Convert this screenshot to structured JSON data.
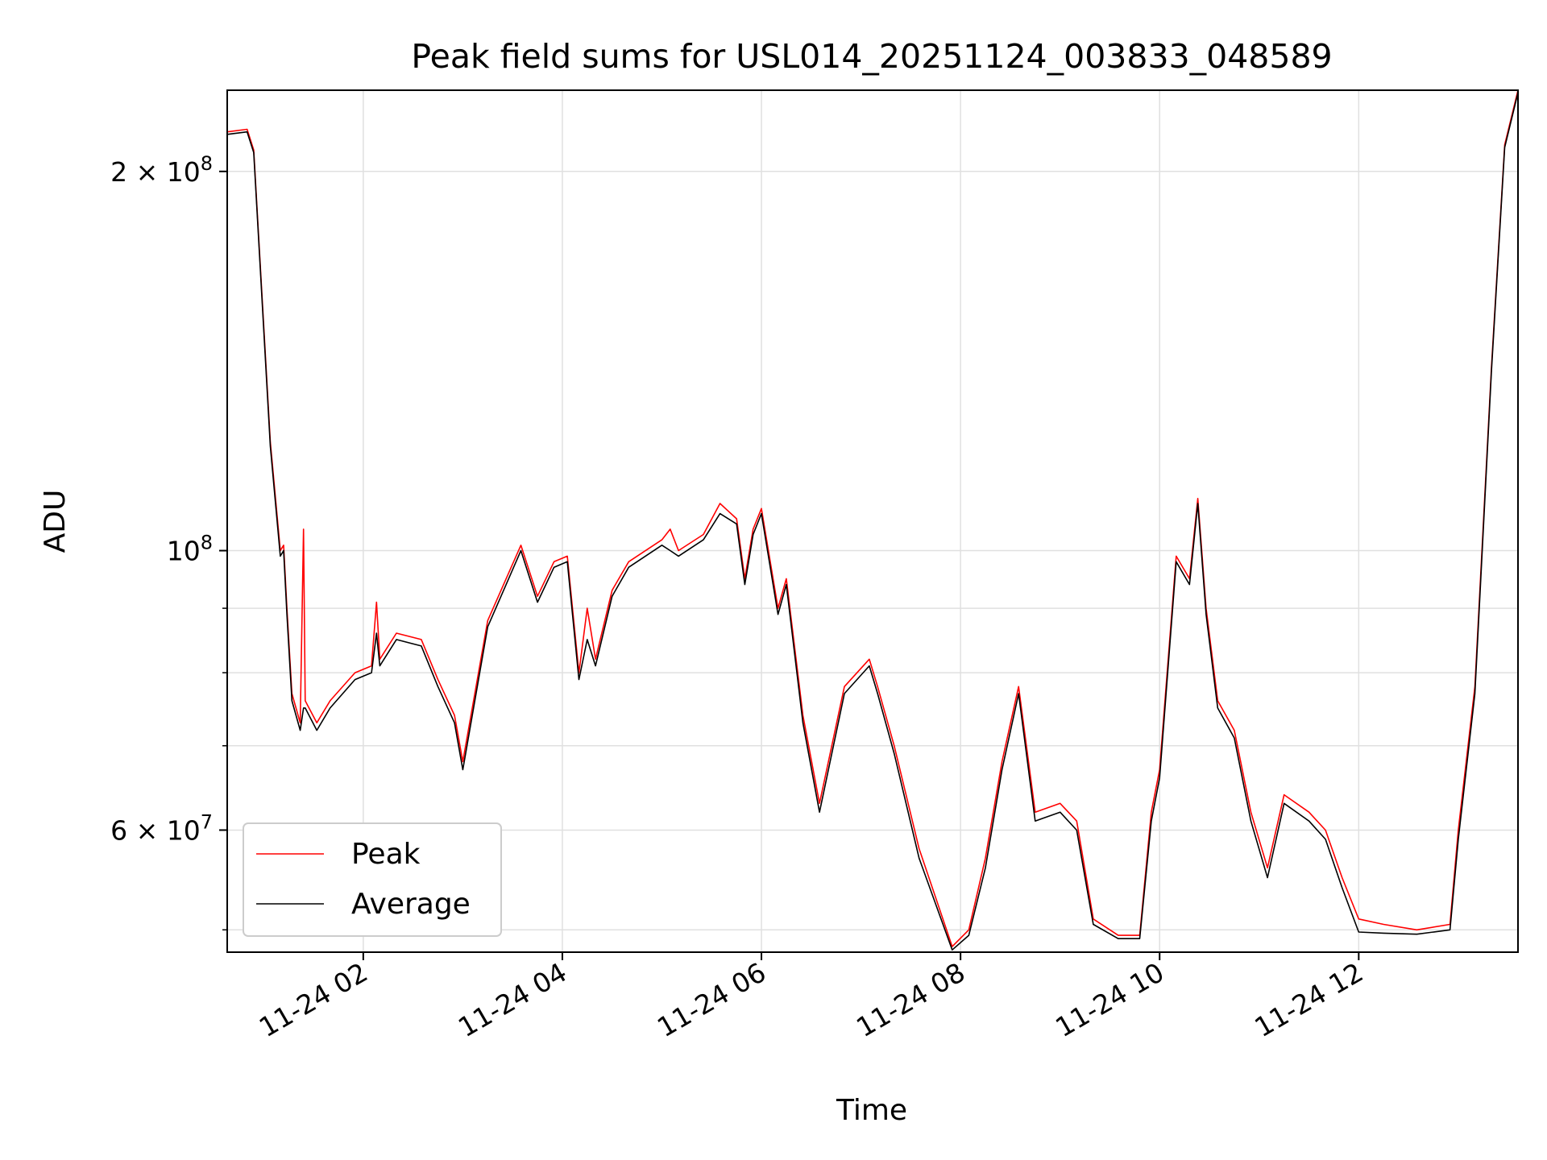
{
  "chart_data": {
    "type": "line",
    "title": "Peak field sums for USL014_20251124_003833_048589",
    "xlabel": "Time",
    "ylabel": "ADU",
    "yscale": "log",
    "ylim": [
      48000000,
      232000000
    ],
    "xlim": [
      "2025-11-24 00:38",
      "2025-11-24 13:36"
    ],
    "grid": true,
    "legend_position": "lower-left",
    "x_ticks": [
      {
        "value": "2025-11-24 02:00",
        "label": "11-24 02"
      },
      {
        "value": "2025-11-24 04:00",
        "label": "11-24 04"
      },
      {
        "value": "2025-11-24 06:00",
        "label": "11-24 06"
      },
      {
        "value": "2025-11-24 08:00",
        "label": "11-24 08"
      },
      {
        "value": "2025-11-24 10:00",
        "label": "11-24 10"
      },
      {
        "value": "2025-11-24 12:00",
        "label": "11-24 12"
      }
    ],
    "y_ticks": [
      {
        "value": 200000000,
        "base": "2 × 10",
        "exp": "8"
      },
      {
        "value": 100000000,
        "base": "10",
        "exp": "8"
      },
      {
        "value": 60000000,
        "base": "6 × 10",
        "exp": "7"
      }
    ],
    "y_minor_ticks": [
      50000000,
      70000000,
      80000000,
      90000000
    ],
    "colors": {
      "peak": "#ff0000",
      "average": "#000000",
      "grid": "#e0e0e0"
    },
    "series": [
      {
        "name": "Peak",
        "color": "#ff0000",
        "points": [
          [
            "2025-11-24 00:38",
            215000000
          ],
          [
            "2025-11-24 00:50",
            216000000
          ],
          [
            "2025-11-24 00:54",
            208000000
          ],
          [
            "2025-11-24 01:04",
            122000000
          ],
          [
            "2025-11-24 01:10",
            100000000
          ],
          [
            "2025-11-24 01:12",
            101000000
          ],
          [
            "2025-11-24 01:14",
            90000000
          ],
          [
            "2025-11-24 01:17",
            77000000
          ],
          [
            "2025-11-24 01:22",
            73000000
          ],
          [
            "2025-11-24 01:24",
            104000000
          ],
          [
            "2025-11-24 01:25",
            76000000
          ],
          [
            "2025-11-24 01:32",
            73000000
          ],
          [
            "2025-11-24 01:40",
            76000000
          ],
          [
            "2025-11-24 01:55",
            80000000
          ],
          [
            "2025-11-24 02:05",
            81000000
          ],
          [
            "2025-11-24 02:08",
            91000000
          ],
          [
            "2025-11-24 02:10",
            82000000
          ],
          [
            "2025-11-24 02:20",
            86000000
          ],
          [
            "2025-11-24 02:35",
            85000000
          ],
          [
            "2025-11-24 02:45",
            79000000
          ],
          [
            "2025-11-24 02:55",
            74000000
          ],
          [
            "2025-11-24 03:00",
            68000000
          ],
          [
            "2025-11-24 03:15",
            88000000
          ],
          [
            "2025-11-24 03:35",
            101000000
          ],
          [
            "2025-11-24 03:45",
            92000000
          ],
          [
            "2025-11-24 03:55",
            98000000
          ],
          [
            "2025-11-24 04:03",
            99000000
          ],
          [
            "2025-11-24 04:10",
            80000000
          ],
          [
            "2025-11-24 04:15",
            90000000
          ],
          [
            "2025-11-24 04:20",
            82000000
          ],
          [
            "2025-11-24 04:30",
            93000000
          ],
          [
            "2025-11-24 04:40",
            98000000
          ],
          [
            "2025-11-24 05:00",
            102000000
          ],
          [
            "2025-11-24 05:05",
            104000000
          ],
          [
            "2025-11-24 05:10",
            100000000
          ],
          [
            "2025-11-24 05:25",
            103000000
          ],
          [
            "2025-11-24 05:35",
            109000000
          ],
          [
            "2025-11-24 05:45",
            106000000
          ],
          [
            "2025-11-24 05:50",
            95000000
          ],
          [
            "2025-11-24 05:55",
            104000000
          ],
          [
            "2025-11-24 06:00",
            108000000
          ],
          [
            "2025-11-24 06:10",
            90000000
          ],
          [
            "2025-11-24 06:15",
            95000000
          ],
          [
            "2025-11-24 06:25",
            74000000
          ],
          [
            "2025-11-24 06:35",
            63000000
          ],
          [
            "2025-11-24 06:50",
            78000000
          ],
          [
            "2025-11-24 07:05",
            82000000
          ],
          [
            "2025-11-24 07:10",
            78000000
          ],
          [
            "2025-11-24 07:20",
            70000000
          ],
          [
            "2025-11-24 07:35",
            58000000
          ],
          [
            "2025-11-24 07:55",
            48500000
          ],
          [
            "2025-11-24 08:05",
            50000000
          ],
          [
            "2025-11-24 08:15",
            57000000
          ],
          [
            "2025-11-24 08:25",
            68000000
          ],
          [
            "2025-11-24 08:35",
            78000000
          ],
          [
            "2025-11-24 08:45",
            62000000
          ],
          [
            "2025-11-24 09:00",
            63000000
          ],
          [
            "2025-11-24 09:10",
            61000000
          ],
          [
            "2025-11-24 09:20",
            51000000
          ],
          [
            "2025-11-24 09:35",
            49500000
          ],
          [
            "2025-11-24 09:48",
            49500000
          ],
          [
            "2025-11-24 09:55",
            62000000
          ],
          [
            "2025-11-24 10:00",
            67000000
          ],
          [
            "2025-11-24 10:10",
            99000000
          ],
          [
            "2025-11-24 10:18",
            95000000
          ],
          [
            "2025-11-24 10:23",
            110000000
          ],
          [
            "2025-11-24 10:28",
            90000000
          ],
          [
            "2025-11-24 10:35",
            76000000
          ],
          [
            "2025-11-24 10:45",
            72000000
          ],
          [
            "2025-11-24 10:55",
            62000000
          ],
          [
            "2025-11-24 11:05",
            56000000
          ],
          [
            "2025-11-24 11:15",
            64000000
          ],
          [
            "2025-11-24 11:30",
            62000000
          ],
          [
            "2025-11-24 11:40",
            60000000
          ],
          [
            "2025-11-24 11:50",
            55000000
          ],
          [
            "2025-11-24 12:00",
            51000000
          ],
          [
            "2025-11-24 12:15",
            50500000
          ],
          [
            "2025-11-24 12:35",
            50000000
          ],
          [
            "2025-11-24 12:55",
            50500000
          ],
          [
            "2025-11-24 13:00",
            60000000
          ],
          [
            "2025-11-24 13:10",
            78000000
          ],
          [
            "2025-11-24 13:20",
            140000000
          ],
          [
            "2025-11-24 13:28",
            210000000
          ],
          [
            "2025-11-24 13:36",
            232000000
          ]
        ]
      },
      {
        "name": "Average",
        "color": "#000000",
        "points": [
          [
            "2025-11-24 00:38",
            214000000
          ],
          [
            "2025-11-24 00:50",
            215000000
          ],
          [
            "2025-11-24 00:54",
            207000000
          ],
          [
            "2025-11-24 01:04",
            121000000
          ],
          [
            "2025-11-24 01:10",
            99000000
          ],
          [
            "2025-11-24 01:12",
            100000000
          ],
          [
            "2025-11-24 01:14",
            89000000
          ],
          [
            "2025-11-24 01:17",
            76000000
          ],
          [
            "2025-11-24 01:22",
            72000000
          ],
          [
            "2025-11-24 01:24",
            75000000
          ],
          [
            "2025-11-24 01:25",
            75000000
          ],
          [
            "2025-11-24 01:32",
            72000000
          ],
          [
            "2025-11-24 01:40",
            75000000
          ],
          [
            "2025-11-24 01:55",
            79000000
          ],
          [
            "2025-11-24 02:05",
            80000000
          ],
          [
            "2025-11-24 02:08",
            86000000
          ],
          [
            "2025-11-24 02:10",
            81000000
          ],
          [
            "2025-11-24 02:20",
            85000000
          ],
          [
            "2025-11-24 02:35",
            84000000
          ],
          [
            "2025-11-24 02:45",
            78000000
          ],
          [
            "2025-11-24 02:55",
            73000000
          ],
          [
            "2025-11-24 03:00",
            67000000
          ],
          [
            "2025-11-24 03:15",
            87000000
          ],
          [
            "2025-11-24 03:35",
            100000000
          ],
          [
            "2025-11-24 03:45",
            91000000
          ],
          [
            "2025-11-24 03:55",
            97000000
          ],
          [
            "2025-11-24 04:03",
            98000000
          ],
          [
            "2025-11-24 04:10",
            79000000
          ],
          [
            "2025-11-24 04:15",
            85000000
          ],
          [
            "2025-11-24 04:20",
            81000000
          ],
          [
            "2025-11-24 04:30",
            92000000
          ],
          [
            "2025-11-24 04:40",
            97000000
          ],
          [
            "2025-11-24 05:00",
            101000000
          ],
          [
            "2025-11-24 05:05",
            100000000
          ],
          [
            "2025-11-24 05:10",
            99000000
          ],
          [
            "2025-11-24 05:25",
            102000000
          ],
          [
            "2025-11-24 05:35",
            107000000
          ],
          [
            "2025-11-24 05:45",
            105000000
          ],
          [
            "2025-11-24 05:50",
            94000000
          ],
          [
            "2025-11-24 05:55",
            103000000
          ],
          [
            "2025-11-24 06:00",
            107000000
          ],
          [
            "2025-11-24 06:10",
            89000000
          ],
          [
            "2025-11-24 06:15",
            94000000
          ],
          [
            "2025-11-24 06:25",
            73000000
          ],
          [
            "2025-11-24 06:35",
            62000000
          ],
          [
            "2025-11-24 06:50",
            77000000
          ],
          [
            "2025-11-24 07:05",
            81000000
          ],
          [
            "2025-11-24 07:10",
            77000000
          ],
          [
            "2025-11-24 07:20",
            69000000
          ],
          [
            "2025-11-24 07:35",
            57000000
          ],
          [
            "2025-11-24 07:55",
            48200000
          ],
          [
            "2025-11-24 08:05",
            49500000
          ],
          [
            "2025-11-24 08:15",
            56000000
          ],
          [
            "2025-11-24 08:25",
            67000000
          ],
          [
            "2025-11-24 08:35",
            77000000
          ],
          [
            "2025-11-24 08:45",
            61000000
          ],
          [
            "2025-11-24 09:00",
            62000000
          ],
          [
            "2025-11-24 09:10",
            60000000
          ],
          [
            "2025-11-24 09:20",
            50500000
          ],
          [
            "2025-11-24 09:35",
            49200000
          ],
          [
            "2025-11-24 09:48",
            49200000
          ],
          [
            "2025-11-24 09:55",
            61000000
          ],
          [
            "2025-11-24 10:00",
            66000000
          ],
          [
            "2025-11-24 10:10",
            98000000
          ],
          [
            "2025-11-24 10:18",
            94000000
          ],
          [
            "2025-11-24 10:23",
            109000000
          ],
          [
            "2025-11-24 10:28",
            89000000
          ],
          [
            "2025-11-24 10:35",
            75000000
          ],
          [
            "2025-11-24 10:45",
            71000000
          ],
          [
            "2025-11-24 10:55",
            61000000
          ],
          [
            "2025-11-24 11:05",
            55000000
          ],
          [
            "2025-11-24 11:15",
            63000000
          ],
          [
            "2025-11-24 11:30",
            61000000
          ],
          [
            "2025-11-24 11:40",
            59000000
          ],
          [
            "2025-11-24 11:50",
            54000000
          ],
          [
            "2025-11-24 12:00",
            49800000
          ],
          [
            "2025-11-24 12:15",
            49700000
          ],
          [
            "2025-11-24 12:35",
            49600000
          ],
          [
            "2025-11-24 12:55",
            50000000
          ],
          [
            "2025-11-24 13:00",
            59000000
          ],
          [
            "2025-11-24 13:10",
            77000000
          ],
          [
            "2025-11-24 13:20",
            139000000
          ],
          [
            "2025-11-24 13:28",
            209000000
          ],
          [
            "2025-11-24 13:36",
            231000000
          ]
        ]
      }
    ]
  }
}
